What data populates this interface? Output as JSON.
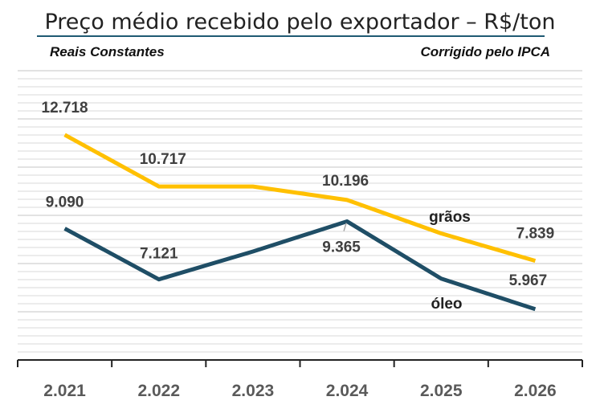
{
  "header": {
    "title": "Preço médio recebido pelo exportador – R$/ton",
    "subtitle_left": "Reais Constantes",
    "subtitle_right": "Corrigido pelo IPCA"
  },
  "colors": {
    "graos": "#FFC000",
    "oleo": "#1F4E66",
    "grid": "#D9D9D9",
    "axis": "#222222"
  },
  "chart_data": {
    "type": "line",
    "categories": [
      "2.021",
      "2.022",
      "2.023",
      "2.024",
      "2.025",
      "2.026"
    ],
    "series": [
      {
        "name": "grãos",
        "values": [
          12718,
          10717,
          10717,
          10196,
          8900,
          7839
        ],
        "labels": [
          "12.718",
          "10.717",
          "",
          "10.196",
          "",
          "7.839"
        ]
      },
      {
        "name": "óleo",
        "values": [
          9090,
          7121,
          8200,
          9365,
          7150,
          5967
        ],
        "labels": [
          "9.090",
          "7.121",
          "",
          "9.365",
          "",
          "5.967"
        ]
      }
    ],
    "ylim": [
      4000,
      15200
    ],
    "grid": true,
    "legend": "inline labels"
  }
}
